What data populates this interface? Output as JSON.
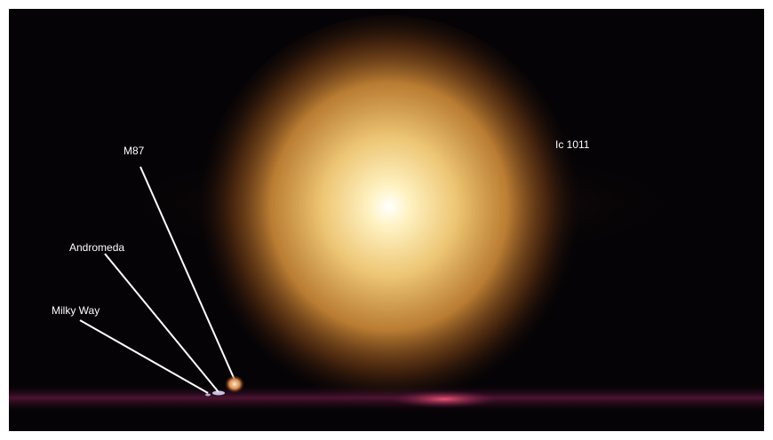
{
  "labels": {
    "m87": "M87",
    "andromeda": "Andromeda",
    "milky_way": "Milky Way",
    "ic_1011": "Ic 1011"
  },
  "colors": {
    "background": "#050306",
    "galaxy_core": "#fffbe6",
    "galaxy_glow": "#f5b74f",
    "galaxy_halo": "#8a4a16",
    "ground_glow": "#a0205a",
    "pointer_lines": "#ffffff"
  }
}
